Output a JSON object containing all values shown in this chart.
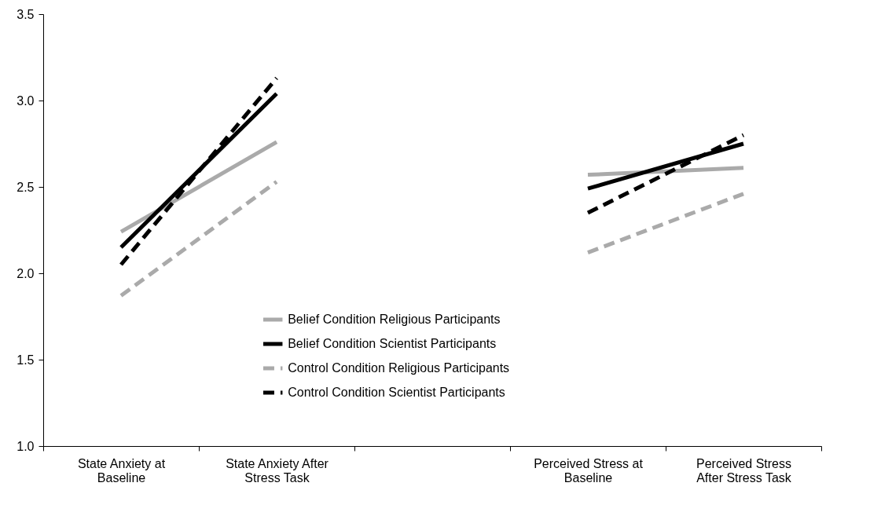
{
  "chart_data": {
    "type": "line",
    "categories": [
      "State Anxiety at Baseline",
      "State Anxiety After Stress Task",
      null,
      "Perceived Stress at Baseline",
      "Perceived Stress After Stress Task"
    ],
    "series": [
      {
        "name": "Belief Condition Religious Participants",
        "color": "#aaaaaa",
        "line_style": "solid",
        "values": [
          2.24,
          2.76,
          null,
          2.57,
          2.61
        ]
      },
      {
        "name": "Belief Condition Scientist Participants",
        "color": "#000000",
        "line_style": "solid",
        "values": [
          2.15,
          3.04,
          null,
          2.49,
          2.75
        ]
      },
      {
        "name": "Control Condition Religious Participants",
        "color": "#aaaaaa",
        "line_style": "dashed",
        "values": [
          1.87,
          2.53,
          null,
          2.12,
          2.46
        ]
      },
      {
        "name": "Control Condition Scientist Participants",
        "color": "#000000",
        "line_style": "dashed",
        "values": [
          2.05,
          3.13,
          null,
          2.35,
          2.8
        ]
      }
    ],
    "ylim": [
      1.0,
      3.5
    ],
    "yticks": [
      {
        "value": 1,
        "label": "1.0"
      },
      1.5,
      {
        "value": 2,
        "label": "2.0"
      },
      2.5,
      {
        "value": 3,
        "label": "3.0"
      },
      3.5
    ],
    "grid": false,
    "legend": "bottom",
    "marker": "none"
  }
}
